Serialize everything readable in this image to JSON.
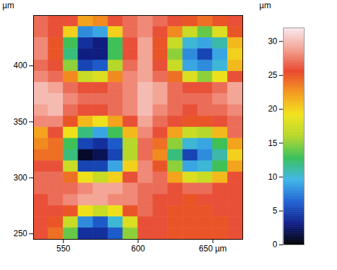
{
  "chart_data": {
    "type": "heatmap",
    "xlim": [
      530,
      670
    ],
    "xticks": [
      550,
      600,
      {
        "value": 650,
        "label": "650 µm"
      }
    ],
    "ylim": [
      245,
      445
    ],
    "yticks": [
      250,
      300,
      350,
      400
    ],
    "y_label": "µm",
    "x_edges": [
      530,
      540,
      550,
      560,
      570,
      580,
      590,
      600,
      610,
      620,
      630,
      640,
      650,
      660,
      670
    ],
    "y_edges": [
      445,
      435,
      425,
      415,
      405,
      395,
      385,
      375,
      365,
      355,
      345,
      335,
      325,
      315,
      305,
      295,
      285,
      275,
      265,
      255,
      245
    ],
    "z": [
      [
        27,
        26,
        26,
        22,
        23,
        26,
        27,
        28,
        27,
        26,
        25,
        24,
        25,
        26
      ],
      [
        27,
        26,
        20,
        8,
        9,
        20,
        27,
        28,
        26,
        23,
        17,
        14,
        18,
        25
      ],
      [
        28,
        25,
        13,
        4,
        3,
        13,
        26,
        29,
        25,
        17,
        10,
        9,
        11,
        21
      ],
      [
        28,
        25,
        12,
        3,
        3,
        13,
        26,
        29,
        25,
        15,
        8,
        5,
        9,
        20
      ],
      [
        27,
        26,
        15,
        5,
        6,
        16,
        27,
        29,
        26,
        17,
        9,
        8,
        10,
        21
      ],
      [
        28,
        27,
        23,
        17,
        18,
        23,
        28,
        29,
        27,
        24,
        18,
        15,
        19,
        26
      ],
      [
        30,
        29,
        27,
        26,
        26,
        27,
        28,
        30,
        29,
        27,
        26,
        26,
        27,
        29
      ],
      [
        30,
        30,
        28,
        27,
        27,
        27,
        28,
        30,
        29,
        27,
        27,
        27,
        28,
        29
      ],
      [
        29,
        30,
        27,
        26,
        26,
        27,
        28,
        30,
        28,
        27,
        26,
        27,
        27,
        28
      ],
      [
        28,
        28,
        25,
        21,
        19,
        22,
        26,
        29,
        27,
        26,
        25,
        25,
        26,
        27
      ],
      [
        22,
        26,
        19,
        12,
        9,
        13,
        21,
        28,
        26,
        22,
        17,
        16,
        21,
        27
      ],
      [
        23,
        24,
        13,
        5,
        4,
        6,
        16,
        27,
        24,
        15,
        10,
        9,
        13,
        22
      ],
      [
        24,
        24,
        12,
        1,
        2,
        5,
        16,
        27,
        23,
        12,
        5,
        8,
        11,
        20
      ],
      [
        26,
        26,
        17,
        5,
        5,
        9,
        20,
        28,
        25,
        15,
        9,
        10,
        13,
        22
      ],
      [
        27,
        27,
        24,
        19,
        17,
        20,
        26,
        28,
        27,
        22,
        18,
        17,
        21,
        26
      ],
      [
        27,
        27,
        27,
        28,
        29,
        29,
        28,
        27,
        27,
        26,
        27,
        27,
        26,
        26
      ],
      [
        26,
        27,
        28,
        29,
        29,
        28,
        28,
        27,
        26,
        26,
        25,
        26,
        26,
        26
      ],
      [
        26,
        26,
        25,
        19,
        17,
        19,
        25,
        27,
        26,
        25,
        25,
        25,
        26,
        26
      ],
      [
        26,
        25,
        17,
        8,
        6,
        10,
        18,
        26,
        26,
        25,
        25,
        25,
        25,
        26
      ],
      [
        26,
        24,
        14,
        4,
        4,
        6,
        15,
        26,
        26,
        25,
        25,
        25,
        25,
        26
      ]
    ],
    "colorbar": {
      "range": [
        0,
        32
      ],
      "ticks": [
        0,
        5,
        10,
        15,
        20,
        25,
        30
      ],
      "label": "µm",
      "colors": [
        "#000000",
        "#101f8a",
        "#1f63d4",
        "#3fb5e6",
        "#37bf5a",
        "#b5d82a",
        "#f2e21b",
        "#f39a1c",
        "#e8452b",
        "#f2a090",
        "#fbe9ee"
      ]
    }
  }
}
